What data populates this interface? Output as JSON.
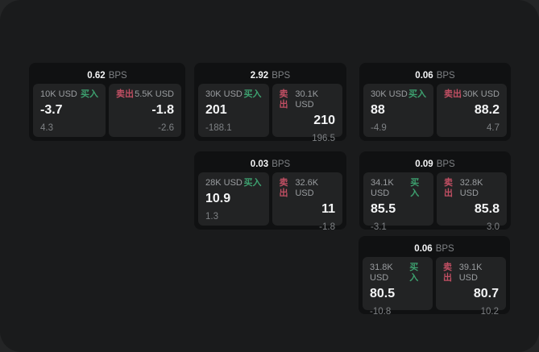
{
  "labels": {
    "buy": "买入",
    "sell": "卖出",
    "bps_suffix": "BPS"
  },
  "colors": {
    "outer_background": "#242526",
    "panel_background": "#1a1b1c",
    "card_background": "#101112",
    "subpanel_background": "#222324",
    "buy_green": "#3da06f",
    "sell_red": "#c14f63",
    "primary_text": "#f4f5f6",
    "muted_text": "#9a9da0",
    "dim_text": "#7e8184"
  },
  "cards": [
    {
      "bps": "0.62",
      "buy": {
        "amount": "10K USD",
        "price": "-3.7",
        "delta": "4.3"
      },
      "sell": {
        "amount": "5.5K USD",
        "price": "-1.8",
        "delta": "-2.6"
      }
    },
    {
      "bps": "2.92",
      "buy": {
        "amount": "30K USD",
        "price": "201",
        "delta": "-188.1"
      },
      "sell": {
        "amount": "30.1K USD",
        "price": "210",
        "delta": "196.5"
      }
    },
    {
      "bps": "0.06",
      "buy": {
        "amount": "30K USD",
        "price": "88",
        "delta": "-4.9"
      },
      "sell": {
        "amount": "30K USD",
        "price": "88.2",
        "delta": "4.7"
      }
    },
    {
      "bps": "0.03",
      "buy": {
        "amount": "28K USD",
        "price": "10.9",
        "delta": "1.3"
      },
      "sell": {
        "amount": "32.6K USD",
        "price": "11",
        "delta": "-1.8"
      }
    },
    {
      "bps": "0.09",
      "buy": {
        "amount": "34.1K USD",
        "price": "85.5",
        "delta": "-3.1"
      },
      "sell": {
        "amount": "32.8K USD",
        "price": "85.8",
        "delta": "3.0"
      }
    },
    {
      "bps": "0.06",
      "buy": {
        "amount": "31.8K USD",
        "price": "80.5",
        "delta": "-10.8"
      },
      "sell": {
        "amount": "39.1K USD",
        "price": "80.7",
        "delta": "10.2"
      }
    }
  ]
}
